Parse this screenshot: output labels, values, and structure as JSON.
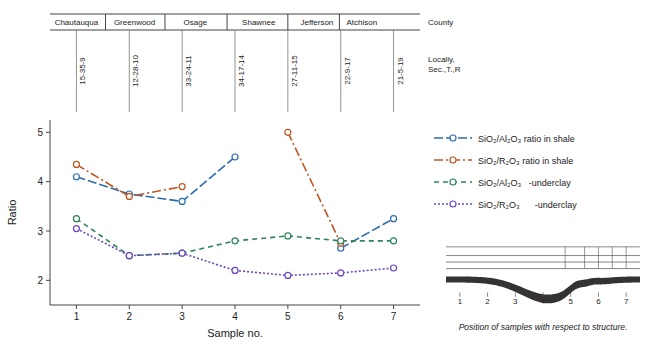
{
  "chart_data": {
    "type": "line",
    "xlabel": "Sample no.",
    "ylabel": "Ratio",
    "x": [
      1,
      2,
      3,
      4,
      5,
      6,
      7
    ],
    "xlim": [
      0.5,
      7.5
    ],
    "ylim": [
      1.5,
      5.25
    ],
    "xticks": [
      1,
      2,
      3,
      4,
      5,
      6,
      7
    ],
    "yticks": [
      2,
      3,
      4,
      5
    ],
    "series": [
      {
        "name": "SiO₂/Al₂O₃ ratio in shale",
        "color": "#2b6cb0",
        "line_style": "long_dash",
        "marker": "circle",
        "values": [
          4.1,
          3.75,
          3.6,
          4.5,
          null,
          2.65,
          3.25
        ]
      },
      {
        "name": "SiO₂/R₂O₃ ratio in shale",
        "color": "#c05621",
        "line_style": "dash_dot",
        "marker": "circle",
        "values": [
          4.35,
          3.7,
          3.9,
          null,
          5.0,
          2.75,
          null
        ]
      },
      {
        "name": "SiO₂/Al₂O₃   -underclay",
        "color": "#2f855a",
        "line_style": "medium_dash",
        "marker": "circle",
        "values": [
          3.25,
          2.5,
          2.55,
          2.8,
          2.9,
          2.8,
          2.8
        ]
      },
      {
        "name": "SiO₂/R₂O₃      -underclay",
        "color": "#6b46c1",
        "line_style": "dotted",
        "marker": "circle",
        "values": [
          3.05,
          2.5,
          2.55,
          2.2,
          2.1,
          2.15,
          2.25
        ]
      }
    ],
    "annotations": [
      {
        "text": "Chautauqua",
        "x": 1.0
      },
      {
        "text": "Greenwood",
        "x": 2.1
      },
      {
        "text": "Osage",
        "x": 3.25
      },
      {
        "text": "Shawnee",
        "x": 4.45
      },
      {
        "text": "Jefferson",
        "x": 5.55
      },
      {
        "text": "Atchison",
        "x": 6.4
      }
    ],
    "county_label": "County",
    "localities": [
      "15-35-9",
      "12-28-10",
      "33-24-11",
      "34-17-14",
      "27-11-15",
      "22-9-17",
      "21-5-19"
    ],
    "locality_label": "Locally,\nSec.,T.,R",
    "caption": "Position of samples with respect to structure."
  }
}
